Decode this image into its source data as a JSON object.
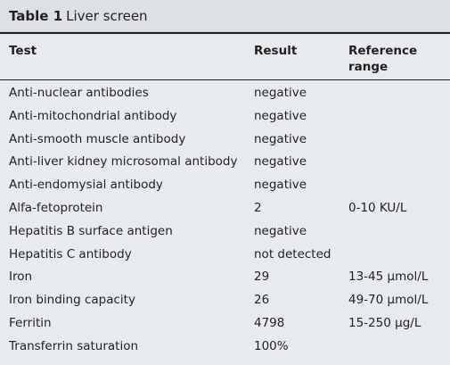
{
  "table": {
    "label": "Table 1",
    "title": "Liver screen",
    "headers": {
      "test": "Test",
      "result": "Result",
      "reference": "Reference range"
    },
    "rows": [
      {
        "test": "Anti-nuclear antibodies",
        "result": "negative",
        "reference": ""
      },
      {
        "test": "Anti-mitochondrial antibody",
        "result": "negative",
        "reference": ""
      },
      {
        "test": "Anti-smooth muscle antibody",
        "result": "negative",
        "reference": ""
      },
      {
        "test": "Anti-liver kidney microsomal antibody",
        "result": "negative",
        "reference": ""
      },
      {
        "test": "Anti-endomysial antibody",
        "result": "negative",
        "reference": ""
      },
      {
        "test": "Alfa-fetoprotein",
        "result": "2",
        "reference": "0-10 KU/L"
      },
      {
        "test": "Hepatitis B surface antigen",
        "result": "negative",
        "reference": ""
      },
      {
        "test": "Hepatitis C antibody",
        "result": "not detected",
        "reference": ""
      },
      {
        "test": "Iron",
        "result": "29",
        "reference": "13-45 µmol/L"
      },
      {
        "test": "Iron binding capacity",
        "result": "26",
        "reference": "49-70 µmol/L"
      },
      {
        "test": "Ferritin",
        "result": "4798",
        "reference": "15-250 µg/L"
      },
      {
        "test": "Transferrin saturation",
        "result": "100%",
        "reference": ""
      }
    ]
  }
}
